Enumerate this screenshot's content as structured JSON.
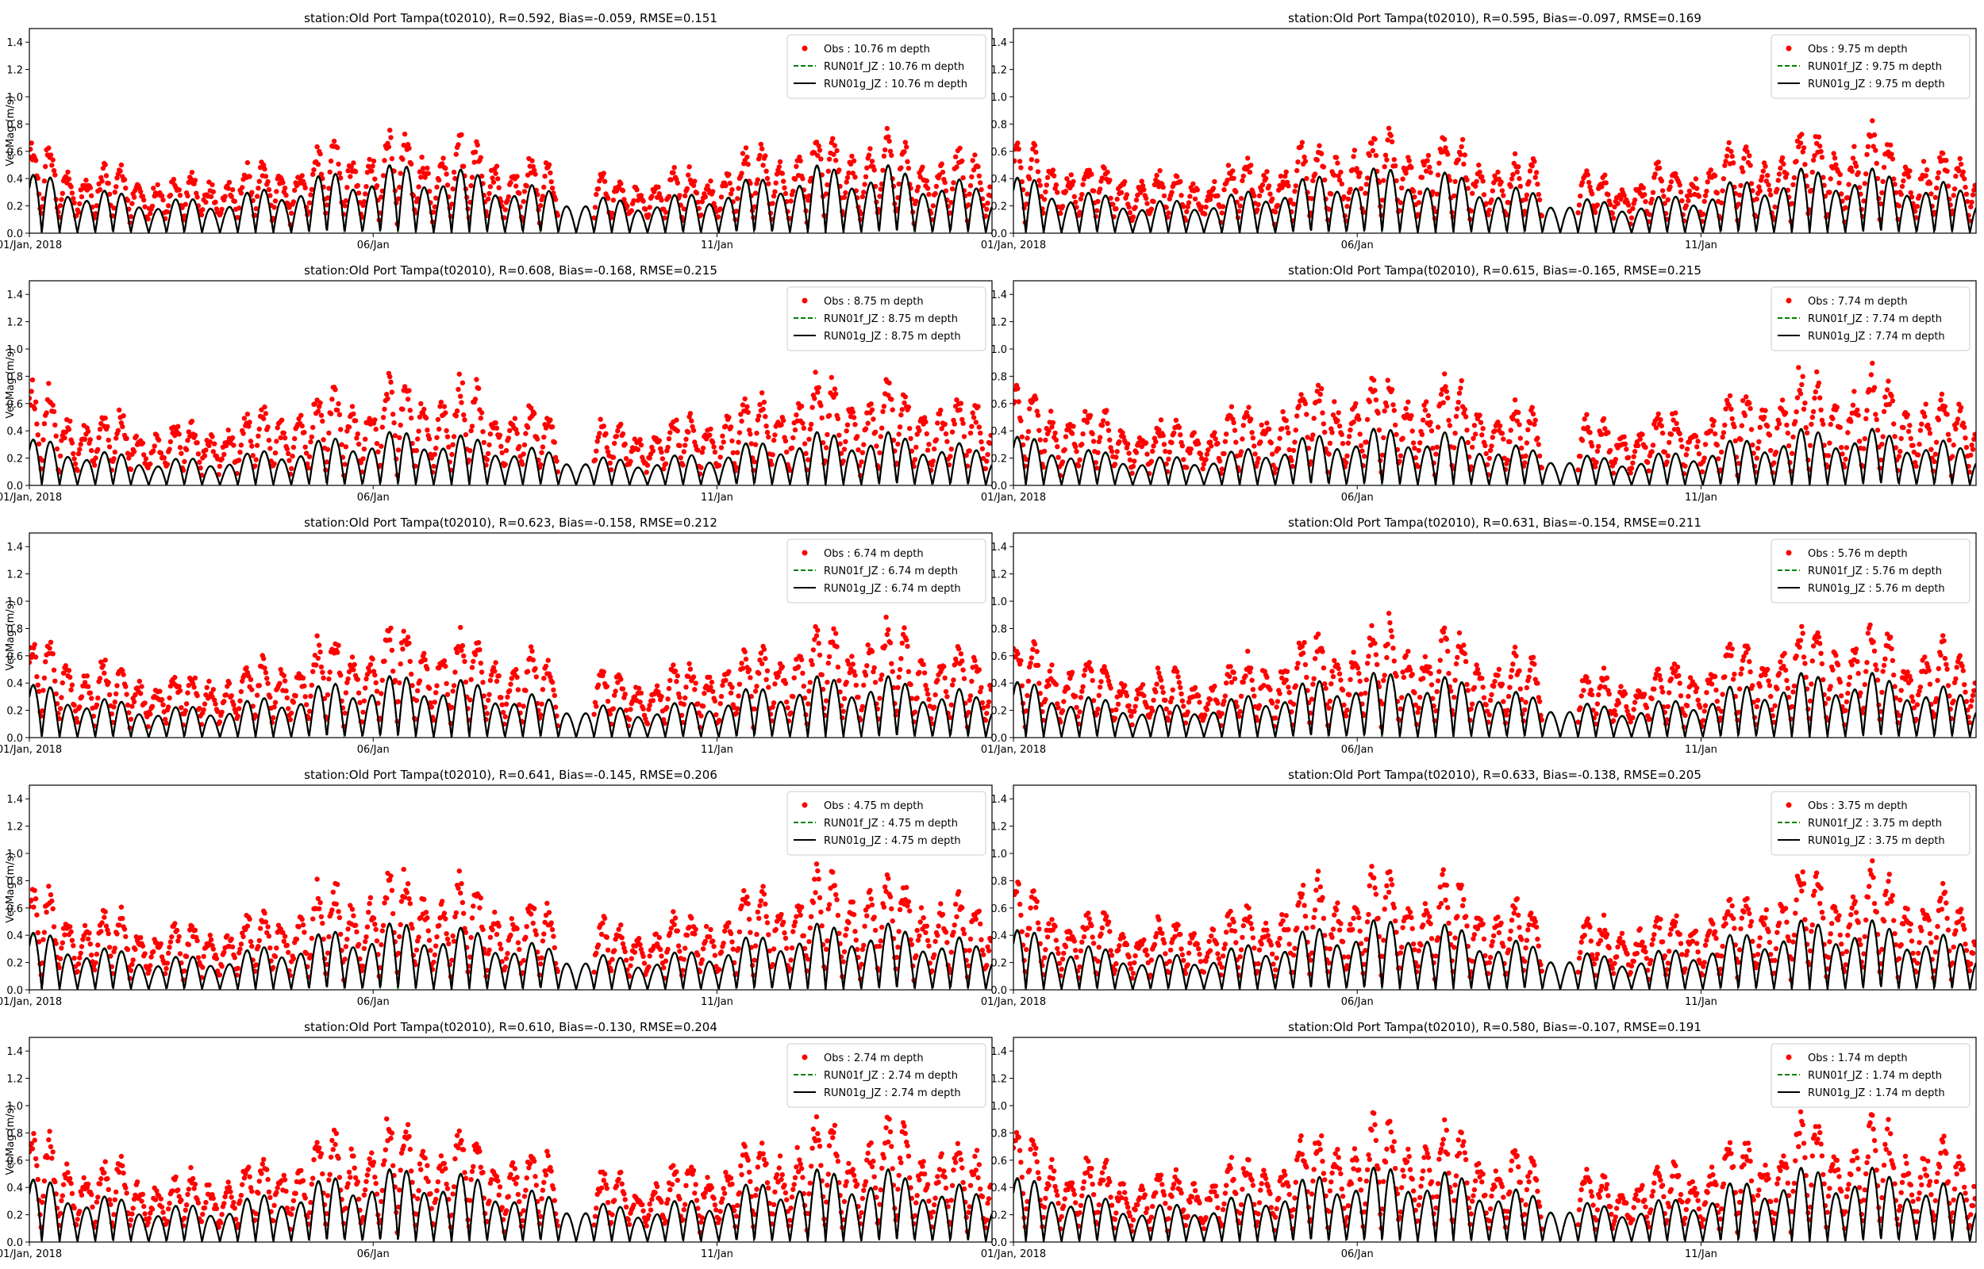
{
  "figure": {
    "x_tick_labels": [
      "01/Jan, 2018",
      "06/Jan",
      "11/Jan"
    ],
    "y_tick_labels": [
      "0.0",
      "0.2",
      "0.4",
      "0.6",
      "0.8",
      "1.0",
      "1.2",
      "1.4"
    ],
    "colors": {
      "obs": "#ff0000",
      "run01f": "#008000",
      "run01g": "#000000"
    }
  },
  "chart_data": [
    {
      "type": "line",
      "title": "station:Old Port Tampa(t02010), R=0.592, Bias=-0.059, RMSE=0.151",
      "ylabel": "Vel.Mag (m/s)",
      "xlim": [
        "2018-01-01",
        "2018-01-15"
      ],
      "ylim": [
        0,
        1.5
      ],
      "legend_position": "top-right",
      "series": [
        {
          "name": "Obs : 10.76 m depth",
          "style": "scatter",
          "obs_peak_mean": 0.5
        },
        {
          "name": "RUN01f_JZ : 10.76 m depth",
          "style": "dashed",
          "model_peak_mean": 0.42
        },
        {
          "name": "RUN01g_JZ : 10.76 m depth",
          "style": "solid",
          "model_peak_mean": 0.42
        }
      ]
    },
    {
      "type": "line",
      "title": "station:Old Port Tampa(t02010), R=0.595, Bias=-0.097, RMSE=0.169",
      "ylabel": "",
      "xlim": [
        "2018-01-01",
        "2018-01-15"
      ],
      "ylim": [
        0,
        1.5
      ],
      "legend_position": "top-right",
      "series": [
        {
          "name": "Obs : 9.75 m depth",
          "style": "scatter",
          "obs_peak_mean": 0.52
        },
        {
          "name": "RUN01f_JZ : 9.75 m depth",
          "style": "dashed",
          "model_peak_mean": 0.4
        },
        {
          "name": "RUN01g_JZ : 9.75 m depth",
          "style": "solid",
          "model_peak_mean": 0.4
        }
      ]
    },
    {
      "type": "line",
      "title": "station:Old Port Tampa(t02010), R=0.608, Bias=-0.168, RMSE=0.215",
      "ylabel": "Vel.Mag (m/s)",
      "xlim": [
        "2018-01-01",
        "2018-01-15"
      ],
      "ylim": [
        0,
        1.5
      ],
      "legend_position": "top-right",
      "series": [
        {
          "name": "Obs : 8.75 m depth",
          "style": "scatter",
          "obs_peak_mean": 0.55
        },
        {
          "name": "RUN01f_JZ : 8.75 m depth",
          "style": "dashed",
          "model_peak_mean": 0.33
        },
        {
          "name": "RUN01g_JZ : 8.75 m depth",
          "style": "solid",
          "model_peak_mean": 0.33
        }
      ]
    },
    {
      "type": "line",
      "title": "station:Old Port Tampa(t02010), R=0.615, Bias=-0.165, RMSE=0.215",
      "ylabel": "",
      "xlim": [
        "2018-01-01",
        "2018-01-15"
      ],
      "ylim": [
        0,
        1.5
      ],
      "legend_position": "top-right",
      "series": [
        {
          "name": "Obs : 7.74 m depth",
          "style": "scatter",
          "obs_peak_mean": 0.57
        },
        {
          "name": "RUN01f_JZ : 7.74 m depth",
          "style": "dashed",
          "model_peak_mean": 0.35
        },
        {
          "name": "RUN01g_JZ : 7.74 m depth",
          "style": "solid",
          "model_peak_mean": 0.35
        }
      ]
    },
    {
      "type": "line",
      "title": "station:Old Port Tampa(t02010), R=0.623, Bias=-0.158, RMSE=0.212",
      "ylabel": "Vel.Mag (m/s)",
      "xlim": [
        "2018-01-01",
        "2018-01-15"
      ],
      "ylim": [
        0,
        1.5
      ],
      "legend_position": "top-right",
      "series": [
        {
          "name": "Obs : 6.74 m depth",
          "style": "scatter",
          "obs_peak_mean": 0.58
        },
        {
          "name": "RUN01f_JZ : 6.74 m depth",
          "style": "dashed",
          "model_peak_mean": 0.38
        },
        {
          "name": "RUN01g_JZ : 6.74 m depth",
          "style": "solid",
          "model_peak_mean": 0.38
        }
      ]
    },
    {
      "type": "line",
      "title": "station:Old Port Tampa(t02010), R=0.631, Bias=-0.154, RMSE=0.211",
      "ylabel": "",
      "xlim": [
        "2018-01-01",
        "2018-01-15"
      ],
      "ylim": [
        0,
        1.5
      ],
      "legend_position": "top-right",
      "series": [
        {
          "name": "Obs : 5.76 m depth",
          "style": "scatter",
          "obs_peak_mean": 0.59
        },
        {
          "name": "RUN01f_JZ : 5.76 m depth",
          "style": "dashed",
          "model_peak_mean": 0.4
        },
        {
          "name": "RUN01g_JZ : 5.76 m depth",
          "style": "solid",
          "model_peak_mean": 0.4
        }
      ]
    },
    {
      "type": "line",
      "title": "station:Old Port Tampa(t02010), R=0.641, Bias=-0.145, RMSE=0.206",
      "ylabel": "Vel.Mag (m/s)",
      "xlim": [
        "2018-01-01",
        "2018-01-15"
      ],
      "ylim": [
        0,
        1.5
      ],
      "legend_position": "top-right",
      "series": [
        {
          "name": "Obs : 4.75 m depth",
          "style": "scatter",
          "obs_peak_mean": 0.61
        },
        {
          "name": "RUN01f_JZ : 4.75 m depth",
          "style": "dashed",
          "model_peak_mean": 0.41
        },
        {
          "name": "RUN01g_JZ : 4.75 m depth",
          "style": "solid",
          "model_peak_mean": 0.41
        }
      ]
    },
    {
      "type": "line",
      "title": "station:Old Port Tampa(t02010), R=0.633, Bias=-0.138, RMSE=0.205",
      "ylabel": "",
      "xlim": [
        "2018-01-01",
        "2018-01-15"
      ],
      "ylim": [
        0,
        1.5
      ],
      "legend_position": "top-right",
      "series": [
        {
          "name": "Obs : 3.75 m depth",
          "style": "scatter",
          "obs_peak_mean": 0.62
        },
        {
          "name": "RUN01f_JZ : 3.75 m depth",
          "style": "dashed",
          "model_peak_mean": 0.43
        },
        {
          "name": "RUN01g_JZ : 3.75 m depth",
          "style": "solid",
          "model_peak_mean": 0.43
        }
      ]
    },
    {
      "type": "line",
      "title": "station:Old Port Tampa(t02010), R=0.610, Bias=-0.130, RMSE=0.204",
      "ylabel": "Vel.Mag (m/s)",
      "xlim": [
        "2018-01-01",
        "2018-01-15"
      ],
      "ylim": [
        0,
        1.5
      ],
      "legend_position": "top-right",
      "series": [
        {
          "name": "Obs : 2.74 m depth",
          "style": "scatter",
          "obs_peak_mean": 0.63
        },
        {
          "name": "RUN01f_JZ : 2.74 m depth",
          "style": "dashed",
          "model_peak_mean": 0.45
        },
        {
          "name": "RUN01g_JZ : 2.74 m depth",
          "style": "solid",
          "model_peak_mean": 0.45
        }
      ]
    },
    {
      "type": "line",
      "title": "station:Old Port Tampa(t02010), R=0.580, Bias=-0.107, RMSE=0.191",
      "ylabel": "",
      "xlim": [
        "2018-01-01",
        "2018-01-15"
      ],
      "ylim": [
        0,
        1.5
      ],
      "legend_position": "top-right",
      "series": [
        {
          "name": "Obs : 1.74 m depth",
          "style": "scatter",
          "obs_peak_mean": 0.64
        },
        {
          "name": "RUN01f_JZ : 1.74 m depth",
          "style": "dashed",
          "model_peak_mean": 0.46
        },
        {
          "name": "RUN01g_JZ : 1.74 m depth",
          "style": "solid",
          "model_peak_mean": 0.46
        }
      ]
    }
  ]
}
